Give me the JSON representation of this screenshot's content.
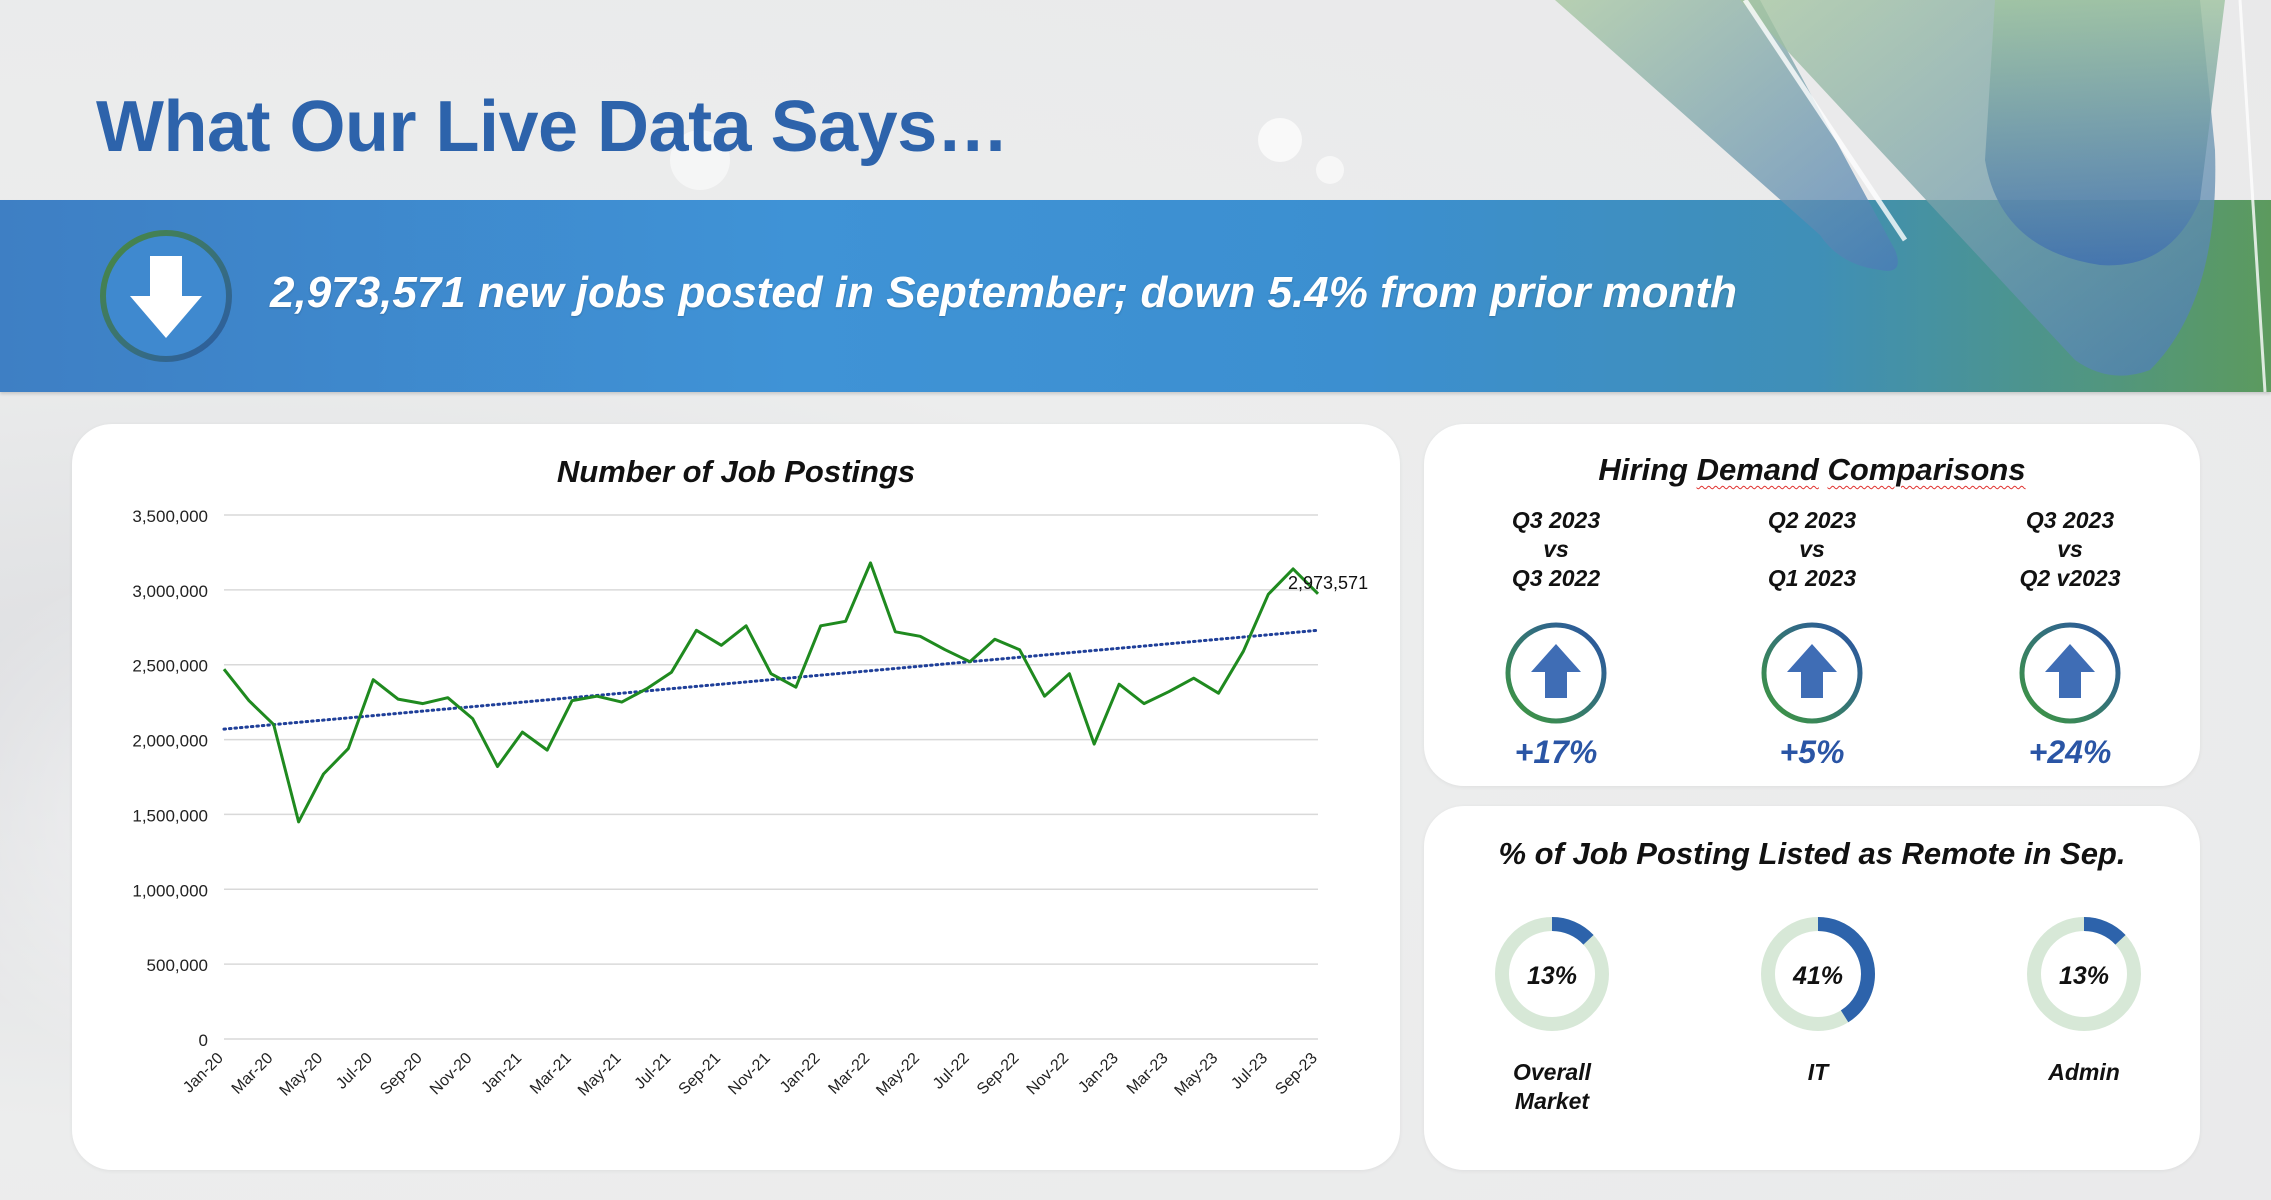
{
  "page": {
    "title": "What Our Live Data Says…"
  },
  "banner": {
    "icon": "down-arrow-icon",
    "text": "2,973,571 new jobs posted in September; down 5.4% from prior month"
  },
  "colors": {
    "title": "#2d63ab",
    "line": "#1f8a1f",
    "trend": "#1f3f99",
    "pct": "#2a55a5",
    "donut_track": "#d7e8d7",
    "donut_fill": "#2d63ab"
  },
  "chart_data": {
    "type": "line",
    "title": "Number of Job Postings",
    "xlabel": "",
    "ylabel": "",
    "ylim": [
      0,
      3500000
    ],
    "yticks": [
      0,
      500000,
      1000000,
      1500000,
      2000000,
      2500000,
      3000000,
      3500000
    ],
    "ytick_labels": [
      "0",
      "500,000",
      "1,000,000",
      "1,500,000",
      "2,000,000",
      "2,500,000",
      "3,000,000",
      "3,500,000"
    ],
    "grid": true,
    "months": [
      "Jan-20",
      "Feb-20",
      "Mar-20",
      "Apr-20",
      "May-20",
      "Jun-20",
      "Jul-20",
      "Aug-20",
      "Sep-20",
      "Oct-20",
      "Nov-20",
      "Dec-20",
      "Jan-21",
      "Feb-21",
      "Mar-21",
      "Apr-21",
      "May-21",
      "Jun-21",
      "Jul-21",
      "Aug-21",
      "Sep-21",
      "Oct-21",
      "Nov-21",
      "Dec-21",
      "Jan-22",
      "Feb-22",
      "Mar-22",
      "Apr-22",
      "May-22",
      "Jun-22",
      "Jul-22",
      "Aug-22",
      "Sep-22",
      "Oct-22",
      "Nov-22",
      "Dec-22",
      "Jan-23",
      "Feb-23",
      "Mar-23",
      "Apr-23",
      "May-23",
      "Jun-23",
      "Jul-23",
      "Aug-23",
      "Sep-23"
    ],
    "tick_labels": [
      "Jan-20",
      "Mar-20",
      "May-20",
      "Jul-20",
      "Sep-20",
      "Nov-20",
      "Jan-21",
      "Mar-21",
      "May-21",
      "Jul-21",
      "Sep-21",
      "Nov-21",
      "Jan-22",
      "Mar-22",
      "May-22",
      "Jul-22",
      "Sep-22",
      "Nov-22",
      "Jan-23",
      "Mar-23",
      "May-23",
      "Jul-23",
      "Sep-23"
    ],
    "series": [
      {
        "values": [
          2470000,
          2260000,
          2100000,
          1450000,
          1770000,
          1940000,
          2400000,
          2270000,
          2240000,
          2280000,
          2140000,
          1820000,
          2050000,
          1930000,
          2260000,
          2290000,
          2250000,
          2340000,
          2450000,
          2730000,
          2630000,
          2760000,
          2440000,
          2350000,
          2760000,
          2790000,
          3180000,
          2720000,
          2690000,
          2600000,
          2520000,
          2670000,
          2600000,
          2290000,
          2440000,
          1970000,
          2370000,
          2240000,
          2320000,
          2410000,
          2310000,
          2590000,
          2970000,
          3140000,
          2973571
        ]
      }
    ],
    "trendline": {
      "start": 2070000,
      "end": 2730000,
      "style": "dotted"
    },
    "last_point_label": "2,973,571"
  },
  "hiring": {
    "heading_parts": [
      "Hiring ",
      "Demand",
      " ",
      "Comparisons"
    ],
    "items": [
      {
        "lines": [
          "Q3 2023",
          "vs",
          "Q3 2022"
        ],
        "pct": "+17%",
        "icon": "up-arrow-icon"
      },
      {
        "lines": [
          "Q2 2023",
          "vs",
          "Q1 2023"
        ],
        "pct": "+5%",
        "icon": "up-arrow-icon"
      },
      {
        "lines": [
          "Q3 2023",
          "vs",
          "Q2 v2023"
        ],
        "pct": "+24%",
        "icon": "up-arrow-icon"
      }
    ]
  },
  "remote": {
    "heading": "% of Job Posting Listed as Remote in Sep.",
    "items": [
      {
        "pct_text": "13%",
        "value": 0.13,
        "label_lines": [
          "Overall",
          "Market"
        ]
      },
      {
        "pct_text": "41%",
        "value": 0.41,
        "label_lines": [
          "IT"
        ]
      },
      {
        "pct_text": "13%",
        "value": 0.13,
        "label_lines": [
          "Admin"
        ]
      }
    ]
  }
}
